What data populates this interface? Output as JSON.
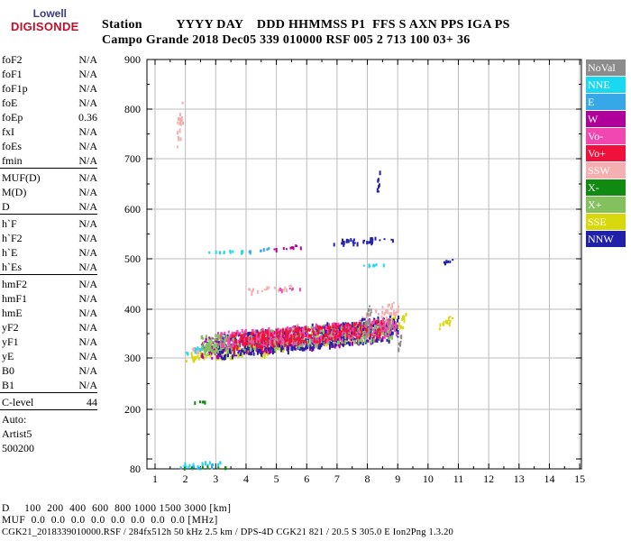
{
  "logo": {
    "line1": "Lowell",
    "line2": "DIGISONDE"
  },
  "header": {
    "row1": "Station          YYYY DAY    DDD HHMMSS P1  FFS S AXN PPS IGA PS",
    "row2": "Campo Grande 2018 Dec05 339 010000 RSF 005 2 713 100 03+ 36"
  },
  "params": [
    {
      "name": "foF2",
      "value": "N/A"
    },
    {
      "name": "foF1",
      "value": "N/A"
    },
    {
      "name": "foF1p",
      "value": "N/A"
    },
    {
      "name": "foE",
      "value": "N/A"
    },
    {
      "name": "foEp",
      "value": "0.36"
    },
    {
      "name": "fxI",
      "value": "N/A"
    },
    {
      "name": "foEs",
      "value": "N/A"
    },
    {
      "name": "fmin",
      "value": "N/A"
    },
    {
      "sep": true
    },
    {
      "name": "MUF(D)",
      "value": "N/A"
    },
    {
      "name": "M(D)",
      "value": "N/A"
    },
    {
      "name": "D",
      "value": "N/A"
    },
    {
      "sep": true
    },
    {
      "name": "h`F",
      "value": "N/A"
    },
    {
      "name": "h`F2",
      "value": "N/A"
    },
    {
      "name": "h`E",
      "value": "N/A"
    },
    {
      "name": "h`Es",
      "value": "N/A"
    },
    {
      "sep": true
    },
    {
      "name": "hmF2",
      "value": "N/A"
    },
    {
      "name": "hmF1",
      "value": "N/A"
    },
    {
      "name": "hmE",
      "value": "N/A"
    },
    {
      "name": "yF2",
      "value": "N/A"
    },
    {
      "name": "yF1",
      "value": "N/A"
    },
    {
      "name": "yE",
      "value": "N/A"
    },
    {
      "name": "B0",
      "value": "N/A"
    },
    {
      "name": "B1",
      "value": "N/A"
    },
    {
      "sep": true
    },
    {
      "name": "C-level",
      "value": "44"
    },
    {
      "sep": true
    }
  ],
  "autoscaling": [
    "Auto:",
    "Artist5",
    "500200"
  ],
  "legend": [
    {
      "label": "NoVal",
      "color": "#8c8c8c"
    },
    {
      "label": "NNE",
      "color": "#1ad8f0"
    },
    {
      "label": "E",
      "color": "#36a8e8"
    },
    {
      "label": "W",
      "color": "#b0009c"
    },
    {
      "label": "Vo-",
      "color": "#f048b0"
    },
    {
      "label": "Vo+",
      "color": "#f0103c"
    },
    {
      "label": "SSW",
      "color": "#f4b0b0"
    },
    {
      "label": "X-",
      "color": "#108a10"
    },
    {
      "label": "X+",
      "color": "#84c060"
    },
    {
      "label": "SSE",
      "color": "#d8d80c"
    },
    {
      "label": "NNW",
      "color": "#2020a8"
    }
  ],
  "footer": {
    "row_d": "D     100  200  400  600  800 1000 1500 3000 [km]",
    "row_muf": "MUF  0.0  0.0  0.0  0.0  0.0  0.0  0.0  0.0 [MHz]",
    "fileline": "CGK21_2018339010000.RSF / 284fx512h 50 kHz 2.5 km / DPS-4D CGK21 821 / 20.5 S 305.0 E Ion2Png 1.3.20"
  },
  "chart_data": {
    "type": "scatter",
    "title": "",
    "xlabel": "",
    "ylabel": "",
    "xlim": [
      0.5,
      15
    ],
    "ylim": [
      80,
      900
    ],
    "x_ticks": [
      1,
      2,
      3,
      4,
      5,
      6,
      7,
      8,
      9,
      10,
      11,
      12,
      13,
      14,
      15
    ],
    "y_ticks": [
      80,
      200,
      300,
      400,
      500,
      600,
      700,
      800,
      900
    ],
    "grid": true,
    "legend_position": "right",
    "series": [
      {
        "name": "SSE",
        "color": "#d8d80c",
        "traces": [
          {
            "x0": 2.0,
            "x1": 3.0,
            "y0": 290,
            "y1": 330
          },
          {
            "x0": 3.0,
            "x1": 4.5,
            "y0": 295,
            "y1": 345
          },
          {
            "x0": 4.5,
            "x1": 6.0,
            "y0": 305,
            "y1": 365
          },
          {
            "x0": 6.2,
            "x1": 7.5,
            "y0": 320,
            "y1": 370
          },
          {
            "x0": 7.5,
            "x1": 9.3,
            "y0": 340,
            "y1": 395
          },
          {
            "x0": 10.3,
            "x1": 10.8,
            "y0": 360,
            "y1": 390
          }
        ]
      },
      {
        "name": "SSW",
        "color": "#f4b0b0",
        "traces": [
          {
            "x0": 1.7,
            "x1": 1.9,
            "y0": 710,
            "y1": 830
          },
          {
            "x0": 2.2,
            "x1": 4.0,
            "y0": 310,
            "y1": 345
          },
          {
            "x0": 4.0,
            "x1": 6.0,
            "y0": 320,
            "y1": 375
          },
          {
            "x0": 7.8,
            "x1": 9.0,
            "y0": 360,
            "y1": 420
          },
          {
            "x0": 4.0,
            "x1": 5.5,
            "y0": 435,
            "y1": 450
          }
        ]
      },
      {
        "name": "NNE",
        "color": "#1ad8f0",
        "traces": [
          {
            "x0": 2.6,
            "x1": 3.9,
            "y0": 510,
            "y1": 520
          },
          {
            "x0": 1.9,
            "x1": 3.2,
            "y0": 84,
            "y1": 100
          },
          {
            "x0": 7.8,
            "x1": 8.6,
            "y0": 485,
            "y1": 495
          },
          {
            "x0": 2.0,
            "x1": 3.0,
            "y0": 310,
            "y1": 330
          }
        ]
      },
      {
        "name": "E",
        "color": "#36a8e8",
        "traces": [
          {
            "x0": 4.0,
            "x1": 4.8,
            "y0": 515,
            "y1": 525
          },
          {
            "x0": 1.8,
            "x1": 3.0,
            "y0": 82,
            "y1": 92
          }
        ]
      },
      {
        "name": "W",
        "color": "#b0009c",
        "traces": [
          {
            "x0": 4.8,
            "x1": 5.8,
            "y0": 518,
            "y1": 530
          },
          {
            "x0": 2.5,
            "x1": 8.5,
            "y0": 300,
            "y1": 380
          }
        ]
      },
      {
        "name": "NNW",
        "color": "#2020a8",
        "traces": [
          {
            "x0": 6.8,
            "x1": 9.0,
            "y0": 530,
            "y1": 548
          },
          {
            "x0": 8.3,
            "x1": 8.4,
            "y0": 610,
            "y1": 690
          },
          {
            "x0": 10.5,
            "x1": 10.8,
            "y0": 490,
            "y1": 505
          },
          {
            "x0": 3.0,
            "x1": 9.0,
            "y0": 300,
            "y1": 390
          }
        ]
      },
      {
        "name": "X-",
        "color": "#108a10",
        "traces": [
          {
            "x0": 1.8,
            "x1": 3.4,
            "y0": 82,
            "y1": 88
          },
          {
            "x0": 2.0,
            "x1": 2.8,
            "y0": 215,
            "y1": 218
          }
        ]
      },
      {
        "name": "X+",
        "color": "#84c060",
        "traces": [
          {
            "x0": 2.5,
            "x1": 8.8,
            "y0": 310,
            "y1": 380
          }
        ]
      },
      {
        "name": "Vo-",
        "color": "#f048b0",
        "traces": [
          {
            "x0": 3.0,
            "x1": 9.0,
            "y0": 320,
            "y1": 385
          },
          {
            "x0": 5.0,
            "x1": 5.8,
            "y0": 440,
            "y1": 445
          }
        ]
      },
      {
        "name": "Vo+",
        "color": "#f0103c",
        "traces": [
          {
            "x0": 3.5,
            "x1": 8.5,
            "y0": 320,
            "y1": 380
          }
        ]
      },
      {
        "name": "NoVal",
        "color": "#8c8c8c",
        "traces": [
          {
            "x0": 7.9,
            "x1": 8.1,
            "y0": 330,
            "y1": 420
          },
          {
            "x0": 9.0,
            "x1": 9.1,
            "y0": 320,
            "y1": 350
          }
        ]
      }
    ]
  }
}
